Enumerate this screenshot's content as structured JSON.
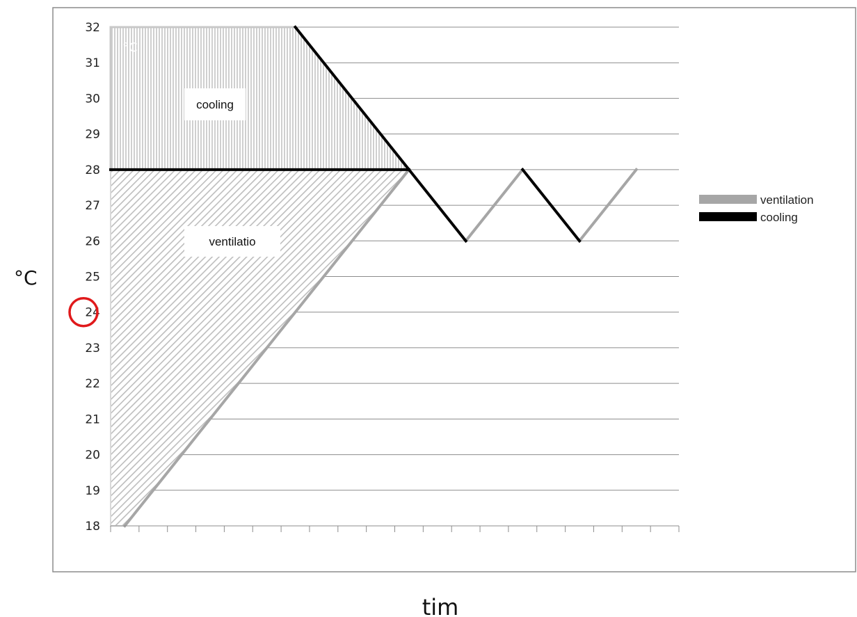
{
  "chart_data": {
    "type": "line",
    "ylabel": "°C",
    "xlabel": "tim",
    "ylim": [
      18,
      32
    ],
    "y_ticks": [
      18,
      19,
      20,
      21,
      22,
      23,
      24,
      25,
      26,
      27,
      28,
      29,
      30,
      31,
      32
    ],
    "x_tick_count": 20,
    "grid": true,
    "legend_position": "right",
    "highlighted_tick": "24",
    "inner_label": "°C",
    "regions": [
      {
        "label": "cooling",
        "y_range": [
          28,
          32
        ]
      },
      {
        "label": "ventilatio",
        "y_range": [
          18,
          28
        ]
      }
    ],
    "series": [
      {
        "name": "ventilation",
        "color": "#a6a6a6",
        "segments": [
          [
            [
              0.5,
              18
            ],
            [
              10.5,
              28
            ]
          ],
          [
            [
              12.5,
              26
            ],
            [
              14.5,
              28
            ]
          ],
          [
            [
              16.5,
              26
            ],
            [
              18.5,
              28
            ]
          ]
        ]
      },
      {
        "name": "cooling",
        "color": "#000000",
        "segments": [
          [
            [
              6.5,
              32
            ],
            [
              10.5,
              28
            ]
          ],
          [
            [
              10.5,
              28
            ],
            [
              12.5,
              26
            ]
          ],
          [
            [
              14.5,
              28
            ],
            [
              16.5,
              26
            ]
          ],
          [
            [
              0,
              28
            ],
            [
              10.5,
              28
            ]
          ]
        ]
      }
    ]
  }
}
